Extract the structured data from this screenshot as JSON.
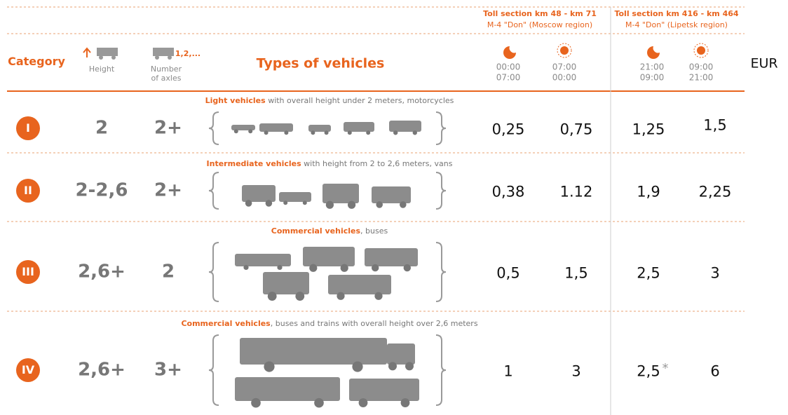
{
  "header": {
    "sections": [
      {
        "title": "Toll section km 48 - km 71",
        "subtitle": "M-4 \"Don\" (Moscow region)"
      },
      {
        "title": "Toll section km 416 - km 464",
        "subtitle": "M-4 \"Don\" (Lipetsk region)"
      }
    ],
    "columns": {
      "category": "Category",
      "height": "Height",
      "axles_icon": "1,2,...",
      "axles": [
        "Number",
        "of axles"
      ],
      "types": "Types of vehicles",
      "times": [
        [
          "00:00",
          "07:00"
        ],
        [
          "07:00",
          "00:00"
        ],
        [
          "21:00",
          "09:00"
        ],
        [
          "09:00",
          "21:00"
        ]
      ],
      "currency": "EUR"
    }
  },
  "rows": [
    {
      "category": "I",
      "height": "2",
      "axles": "2+",
      "label": "Light vehicles",
      "description": " with overall height under 2 meters, motorcycles",
      "prices": [
        "0,25",
        "0,75",
        "1,25",
        "1,5"
      ]
    },
    {
      "category": "II",
      "height": "2-2,6",
      "axles": "2+",
      "label": "Intermediate vehicles",
      "description": " with height from 2 to 2,6 meters, vans",
      "prices": [
        "0,38",
        "1.12",
        "1,9",
        "2,25"
      ]
    },
    {
      "category": "III",
      "height": "2,6+",
      "axles": "2",
      "label": "Commercial vehicles",
      "description": ", buses",
      "prices": [
        "0,5",
        "1,5",
        "2,5",
        "3"
      ]
    },
    {
      "category": "IV",
      "height": "2,6+",
      "axles": "3+",
      "label": "Commercial vehicles",
      "description": ", buses and trains with overall height over 2,6 meters",
      "prices": [
        "1",
        "3",
        "2,5",
        "6"
      ],
      "price_note": "*"
    }
  ]
}
